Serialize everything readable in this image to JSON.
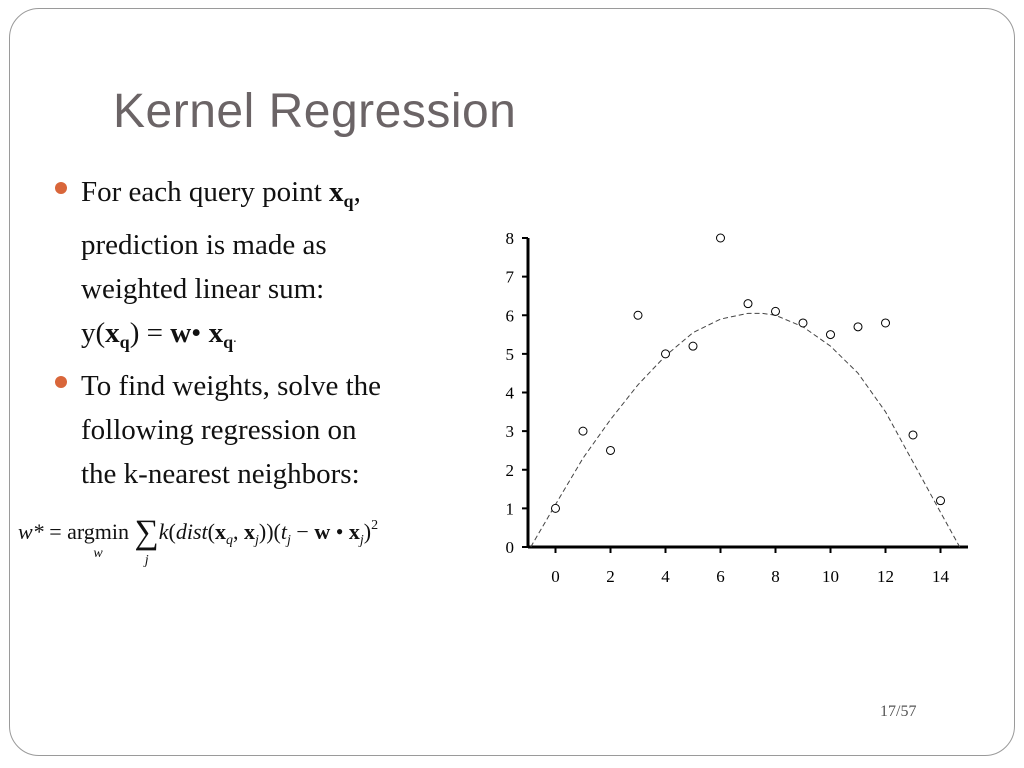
{
  "slide": {
    "title": "Kernel Regression",
    "page_number": "17/57"
  },
  "bullets": [
    {
      "line1": "For each query point ",
      "line1_bold": "x",
      "line1_sub": "q",
      "line1_end": ",",
      "line2": "prediction is made as",
      "line3": "weighted linear sum:",
      "eq_y": "y(",
      "eq_x": "x",
      "eq_q": "q",
      "eq_mid": ") = ",
      "eq_w": "w",
      "eq_dot": "•",
      "eq_x2": " x",
      "eq_q2": "q",
      "eq_period": "."
    },
    {
      "line1": "To find weights, solve the",
      "line2": "following regression on",
      "line3": "the k-nearest neighbors:"
    }
  ],
  "formula": {
    "lhs": "w*",
    "eq": " = ",
    "argmin": "argmin",
    "argmin_sub": "w",
    "sum": "∑",
    "sum_sub": "j",
    "k": "k",
    "open": "(",
    "dist": "dist",
    "open2": "(",
    "xq": "x",
    "q": "q",
    "comma": ", ",
    "xj": "x",
    "j1": "j",
    "close": "))(",
    "t": "t",
    "j2": "j",
    "minus": " − ",
    "w": "w",
    "bullet": " • ",
    "x3": "x",
    "j3": "j",
    "close2": ")",
    "sq": "2"
  },
  "chart_data": {
    "type": "scatter",
    "title": "",
    "xlabel": "",
    "ylabel": "",
    "xlim": [
      -1,
      15
    ],
    "ylim": [
      0,
      8
    ],
    "xticks": [
      0,
      2,
      4,
      6,
      8,
      10,
      12,
      14
    ],
    "yticks": [
      0,
      1,
      2,
      3,
      4,
      5,
      6,
      7,
      8
    ],
    "grid": false,
    "points": {
      "x": [
        0,
        1,
        2,
        3,
        4,
        5,
        6,
        7,
        8,
        9,
        10,
        11,
        12,
        13,
        14
      ],
      "y": [
        1,
        3,
        2.5,
        6,
        5,
        5.2,
        8,
        6.3,
        6.1,
        5.8,
        5.5,
        5.7,
        5.8,
        2.9,
        1.2
      ]
    },
    "curve": {
      "style": "dashed",
      "x": [
        -0.9,
        0,
        1,
        2,
        3,
        4,
        5,
        6,
        7,
        7.5,
        8,
        9,
        10,
        11,
        12,
        13,
        14,
        14.7
      ],
      "y": [
        0,
        1.1,
        2.3,
        3.3,
        4.2,
        4.95,
        5.55,
        5.9,
        6.05,
        6.05,
        6.0,
        5.7,
        5.2,
        4.5,
        3.5,
        2.2,
        0.9,
        0
      ]
    }
  },
  "colors": {
    "title": "#6b6466",
    "bullet": "#d9663a",
    "frame": "#9a9a9a"
  }
}
